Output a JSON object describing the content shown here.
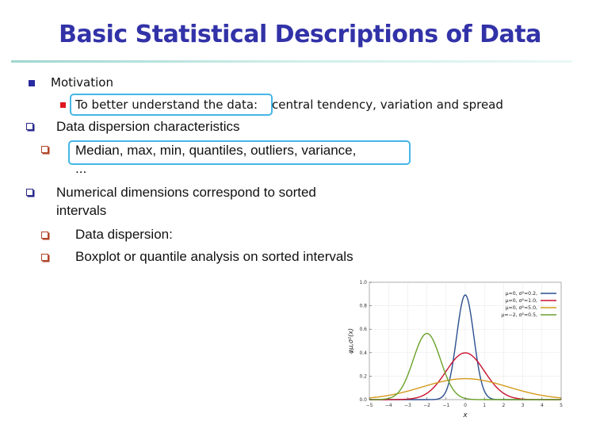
{
  "slide": {
    "title": "Basic Statistical Descriptions of Data",
    "motivation": "Motivation",
    "motivation_sub_highlight": "To better understand the data:",
    "motivation_sub_rest": "central tendency, variation and spread",
    "dispersion_heading": "Data dispersion characteristics",
    "dispersion_items_line1": "Median, max, min, quantiles, outliers, variance,",
    "dispersion_items_line2": "...",
    "numerical_line1": "Numerical dimensions correspond to sorted",
    "numerical_line2": "intervals",
    "sub_item_1": "Data dispersion:",
    "sub_item_2": "Boxplot or quantile analysis on sorted intervals"
  },
  "colors": {
    "title": "#3232a8",
    "highlight_border": "#45b6e6",
    "bullet_blue": "#2a2aa0",
    "bullet_red": "#e0161e"
  },
  "chart_data": {
    "type": "line",
    "xlabel": "x",
    "ylabel": "φμ,σ²(x)",
    "xlim": [
      -5,
      5
    ],
    "ylim": [
      0,
      1.0
    ],
    "x_ticks": [
      "−5",
      "−4",
      "−3",
      "−2",
      "−1",
      "0",
      "1",
      "2",
      "3",
      "4",
      "5"
    ],
    "y_ticks": [
      "0.0",
      "0.2",
      "0.4",
      "0.6",
      "0.8",
      "1.0"
    ],
    "legend_position": "top-right",
    "series": [
      {
        "name": "μ=0,   σ²=0.2,",
        "mu": 0,
        "variance": 0.2,
        "color": "#2b4f8f"
      },
      {
        "name": "μ=0,   σ²=1.0,",
        "mu": 0,
        "variance": 1.0,
        "color": "#c8102e"
      },
      {
        "name": "μ=0,   σ²=5.0,",
        "mu": 0,
        "variance": 5.0,
        "color": "#d49a1c"
      },
      {
        "name": "μ=−2, σ²=0.5,",
        "mu": -2,
        "variance": 0.5,
        "color": "#6aa12a"
      }
    ]
  }
}
